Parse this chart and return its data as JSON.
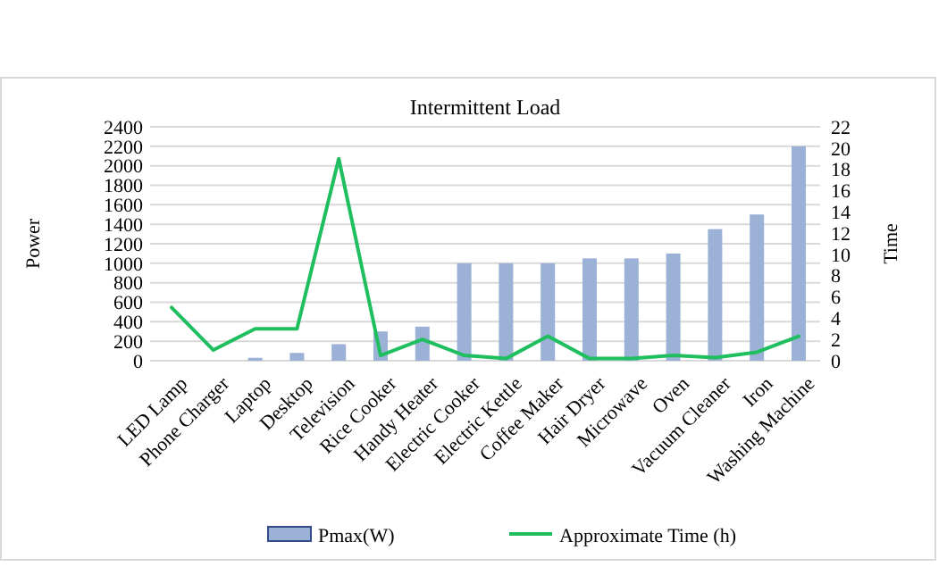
{
  "chart_data": {
    "type": "bar",
    "title": "Intermittent Load",
    "ylabel": "Power",
    "y2label": "Time",
    "categories": [
      "LED Lamp",
      "Phone Charger",
      "Laptop",
      "Desktop",
      "Television",
      "Rice Cooker",
      "Handy Heater",
      "Electric Cooker",
      "Electric Kettle",
      "Coffee Maker",
      "Hair Dryer",
      "Microwave",
      "Oven",
      "Vacuum Cleaner",
      "Iron",
      "Washing Machine"
    ],
    "series": [
      {
        "name": "Pmax(W)",
        "color": "#9bb1d6",
        "values": [
          0,
          0,
          30,
          80,
          170,
          300,
          350,
          1000,
          1000,
          1000,
          1050,
          1050,
          1100,
          1350,
          1500,
          2200
        ]
      },
      {
        "name": "Approximate Time (h)",
        "type": "line",
        "axis": "y2",
        "color": "#1fbf5f",
        "values": [
          5,
          1,
          3,
          3,
          19,
          0.5,
          2,
          0.5,
          0.2,
          2.3,
          0.2,
          0.2,
          0.5,
          0.3,
          0.8,
          2.3
        ]
      }
    ],
    "ylim": [
      0,
      2400
    ],
    "yticks": [
      0,
      200,
      400,
      600,
      800,
      1000,
      1200,
      1400,
      1600,
      1800,
      2000,
      2200,
      2400
    ],
    "y2lim": [
      0,
      22
    ],
    "y2ticks": [
      0,
      2,
      4,
      6,
      8,
      10,
      12,
      14,
      16,
      18,
      20,
      22
    ],
    "grid": "y",
    "legend": "bottom"
  }
}
